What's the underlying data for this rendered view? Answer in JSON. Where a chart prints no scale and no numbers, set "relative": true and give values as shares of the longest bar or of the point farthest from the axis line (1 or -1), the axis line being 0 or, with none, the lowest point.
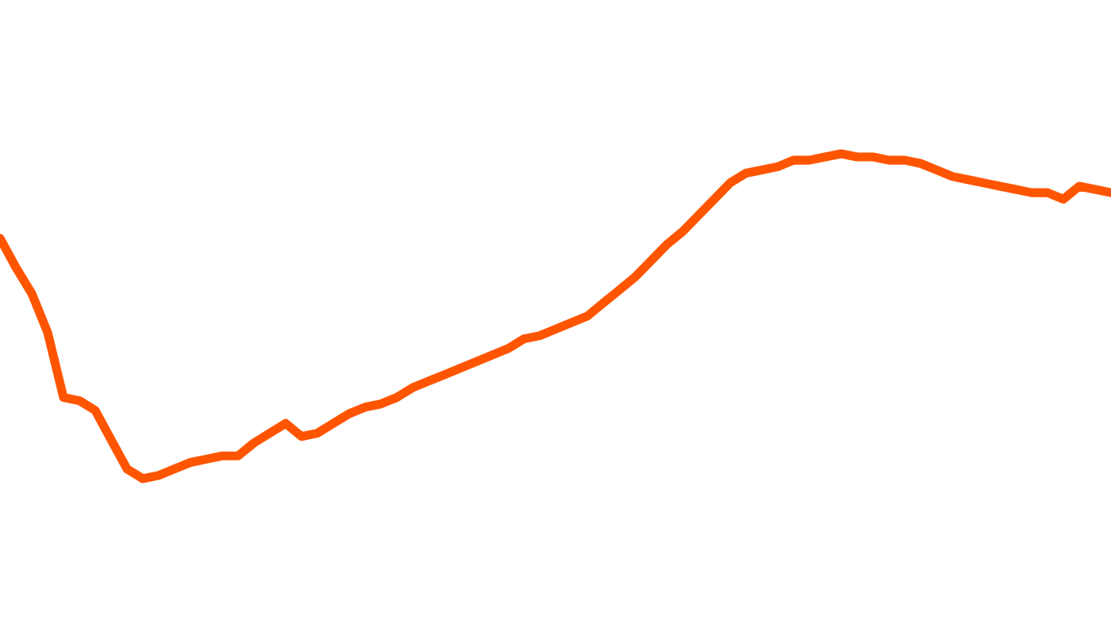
{
  "chart_data": {
    "type": "line",
    "relative": true,
    "categories": [
      null,
      null,
      null,
      null,
      null,
      null,
      null,
      null,
      null,
      null,
      null,
      null,
      null,
      null,
      null,
      null,
      null,
      null,
      null,
      null,
      null,
      null,
      null,
      null,
      null,
      null,
      null,
      null,
      null,
      null,
      null,
      null,
      null,
      null,
      null,
      null,
      null,
      null,
      null,
      null,
      null,
      null,
      null,
      null,
      null,
      null,
      null,
      null,
      null,
      null,
      null,
      null,
      null,
      null,
      null,
      null,
      null,
      null,
      null,
      null,
      null,
      null,
      null,
      null,
      null,
      null,
      null,
      null,
      null,
      null,
      null
    ],
    "series": [
      {
        "color": "#ff5500",
        "values": [
          0.74,
          0.65,
          0.57,
          0.45,
          0.25,
          0.24,
          0.21,
          0.12,
          0.03,
          0,
          0.01,
          0.03,
          0.05,
          0.06,
          0.07,
          0.07,
          0.11,
          0.14,
          0.17,
          0.13,
          0.14,
          0.17,
          0.2,
          0.22,
          0.23,
          0.25,
          0.28,
          0.3,
          0.32,
          0.34,
          0.36,
          0.38,
          0.4,
          0.43,
          0.44,
          0.46,
          0.48,
          0.5,
          0.54,
          0.58,
          0.62,
          0.67,
          0.72,
          0.76,
          0.81,
          0.86,
          0.91,
          0.94,
          0.95,
          0.96,
          0.98,
          0.98,
          0.99,
          1,
          0.99,
          0.99,
          0.98,
          0.98,
          0.97,
          0.95,
          0.93,
          0.92,
          0.91,
          0.9,
          0.89,
          0.88,
          0.88,
          0.86,
          0.9,
          0.89,
          0.88
        ]
      }
    ],
    "marker": "none",
    "line_style": "solid"
  }
}
